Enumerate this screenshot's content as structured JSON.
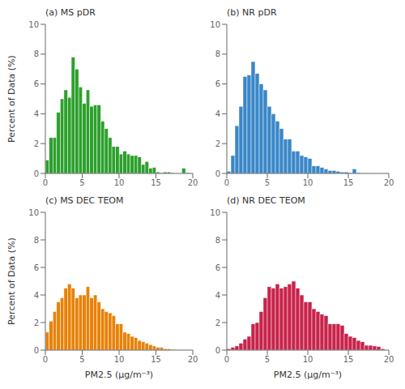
{
  "chart_data": [
    {
      "type": "histogram",
      "title": "(a) MS pDR",
      "ylabel": "Percent of Data (%)",
      "color": "#2ca02c",
      "xlim": [
        0,
        20
      ],
      "ylim": [
        0,
        10
      ],
      "xticks": [
        0,
        5,
        10,
        15,
        20
      ],
      "yticks": [
        0,
        2,
        4,
        6,
        8,
        10
      ],
      "grid": false,
      "bins": [
        0,
        0.5,
        1,
        1.5,
        2,
        2.5,
        3,
        3.5,
        4,
        4.5,
        5,
        5.5,
        6,
        6.5,
        7,
        7.5,
        8,
        8.5,
        9,
        9.5,
        10,
        10.5,
        11,
        11.5,
        12,
        12.5,
        13,
        13.5,
        14,
        14.5,
        15,
        15.5,
        16,
        16.5,
        17,
        17.5,
        18,
        18.5,
        19,
        19.5,
        20
      ],
      "values": [
        0.9,
        2.4,
        2.4,
        4.1,
        5.0,
        5.6,
        5.1,
        7.8,
        7.0,
        5.8,
        4.7,
        5.6,
        4.5,
        4.6,
        4.6,
        3.5,
        3.0,
        2.4,
        1.8,
        1.8,
        1.3,
        1.5,
        1.3,
        1.2,
        1.2,
        1.1,
        0.6,
        0.8,
        0.35,
        0.4,
        0.1,
        0.05,
        0.1,
        0.1,
        0.05,
        0.0,
        0.0,
        0.35,
        0.05,
        0.0
      ]
    },
    {
      "type": "histogram",
      "title": "(b) NR pDR",
      "color": "#3a87c8",
      "xlim": [
        0,
        20
      ],
      "ylim": [
        0,
        10
      ],
      "xticks": [
        0,
        5,
        10,
        15,
        20
      ],
      "yticks": [
        0,
        2,
        4,
        6,
        8,
        10
      ],
      "grid": false,
      "bins": [
        0,
        0.5,
        1,
        1.5,
        2,
        2.5,
        3,
        3.5,
        4,
        4.5,
        5,
        5.5,
        6,
        6.5,
        7,
        7.5,
        8,
        8.5,
        9,
        9.5,
        10,
        10.5,
        11,
        11.5,
        12,
        12.5,
        13,
        13.5,
        14,
        14.5,
        15,
        15.5,
        16,
        16.5,
        17,
        17.5,
        18,
        18.5,
        19,
        19.5,
        20
      ],
      "values": [
        0.15,
        1.2,
        3.2,
        4.5,
        6.5,
        6.6,
        7.5,
        6.7,
        6.0,
        5.6,
        4.5,
        4.0,
        3.5,
        3.0,
        2.3,
        2.3,
        1.5,
        1.5,
        1.2,
        1.1,
        1.0,
        0.5,
        0.5,
        0.4,
        0.3,
        0.2,
        0.2,
        0.15,
        0.1,
        0.1,
        0.05,
        0.3,
        0.05,
        0.0,
        0.0,
        0.0,
        0.0,
        0.0,
        0.0,
        0.0
      ]
    },
    {
      "type": "histogram",
      "title": "(c) MS DEC TEOM",
      "xlabel": "PM2.5 (μg/m⁻³)",
      "ylabel": "Percent of Data (%)",
      "color": "#e8820a",
      "xlim": [
        0,
        20
      ],
      "ylim": [
        0,
        10
      ],
      "xticks": [
        0,
        5,
        10,
        15,
        20
      ],
      "yticks": [
        0,
        2,
        4,
        6,
        8,
        10
      ],
      "grid": false,
      "bins": [
        0,
        0.5,
        1,
        1.5,
        2,
        2.5,
        3,
        3.5,
        4,
        4.5,
        5,
        5.5,
        6,
        6.5,
        7,
        7.5,
        8,
        8.5,
        9,
        9.5,
        10,
        10.5,
        11,
        11.5,
        12,
        12.5,
        13,
        13.5,
        14,
        14.5,
        15,
        15.5,
        16,
        16.5,
        17,
        17.5,
        18,
        18.5,
        19,
        19.5,
        20
      ],
      "values": [
        1.3,
        2.1,
        2.8,
        3.5,
        3.8,
        4.5,
        4.8,
        4.5,
        3.8,
        4.0,
        4.0,
        4.6,
        3.8,
        4.0,
        3.5,
        3.0,
        2.8,
        2.7,
        2.5,
        1.9,
        1.9,
        1.3,
        1.2,
        1.0,
        0.9,
        0.7,
        0.6,
        0.5,
        0.4,
        0.3,
        0.2,
        0.2,
        0.1,
        0.1,
        0.05,
        0.0,
        0.0,
        0.0,
        0.0,
        0.0
      ]
    },
    {
      "type": "histogram",
      "title": "(d) NR DEC TEOM",
      "xlabel": "PM2.5 (μg/m⁻³)",
      "color": "#c8234a",
      "xlim": [
        0,
        20
      ],
      "ylim": [
        0,
        10
      ],
      "xticks": [
        0,
        5,
        10,
        15,
        20
      ],
      "yticks": [
        0,
        2,
        4,
        6,
        8,
        10
      ],
      "grid": false,
      "bins": [
        0,
        0.5,
        1,
        1.5,
        2,
        2.5,
        3,
        3.5,
        4,
        4.5,
        5,
        5.5,
        6,
        6.5,
        7,
        7.5,
        8,
        8.5,
        9,
        9.5,
        10,
        10.5,
        11,
        11.5,
        12,
        12.5,
        13,
        13.5,
        14,
        14.5,
        15,
        15.5,
        16,
        16.5,
        17,
        17.5,
        18,
        18.5,
        19,
        19.5,
        20
      ],
      "values": [
        0.1,
        0.2,
        0.3,
        0.5,
        0.8,
        1.0,
        1.9,
        2.0,
        2.8,
        3.8,
        4.6,
        4.5,
        4.8,
        4.5,
        4.6,
        4.8,
        5.0,
        4.5,
        4.0,
        3.5,
        3.5,
        3.0,
        2.8,
        2.6,
        2.5,
        1.9,
        1.9,
        1.9,
        1.8,
        1.2,
        1.0,
        0.9,
        0.7,
        0.6,
        0.35,
        0.35,
        0.3,
        0.25,
        0.1,
        0.0
      ]
    }
  ]
}
